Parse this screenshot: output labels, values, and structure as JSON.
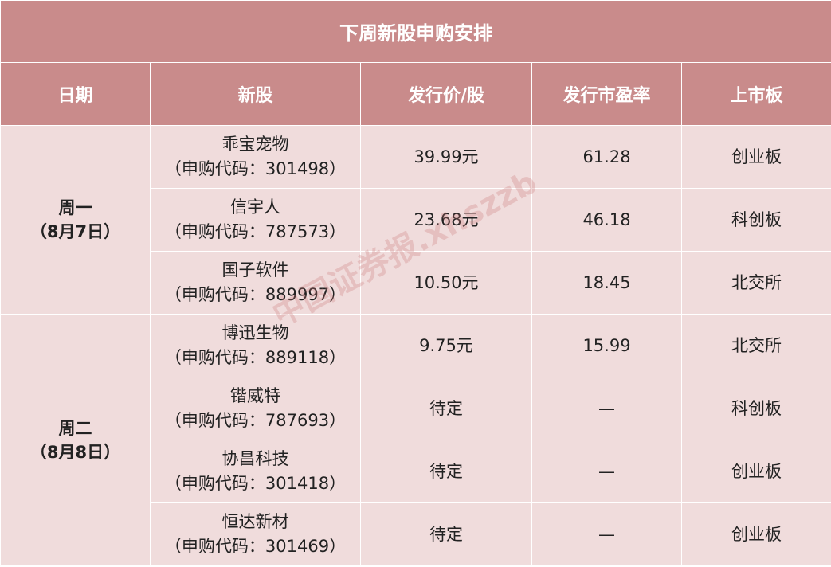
{
  "title": "下周新股申购安排",
  "headers": [
    "日期",
    "新股",
    "发行价/股",
    "发行市盈率",
    "上市板"
  ],
  "groups": [
    {
      "day": "周一",
      "date": "（8月7日）"
    },
    {
      "day": "周二",
      "date": "（8月8日）"
    }
  ],
  "rows": [
    {
      "name": "乖宝宠物",
      "code": "（申购代码：301498）",
      "price": "39.99元",
      "pe": "61.28",
      "board": "创业板"
    },
    {
      "name": "信宇人",
      "code": "（申购代码：787573）",
      "price": "23.68元",
      "pe": "46.18",
      "board": "科创板"
    },
    {
      "name": "国子软件",
      "code": "（申购代码：889997）",
      "price": "10.50元",
      "pe": "18.45",
      "board": "北交所"
    },
    {
      "name": "博迅生物",
      "code": "（申购代码：889118）",
      "price": "9.75元",
      "pe": "15.99",
      "board": "北交所"
    },
    {
      "name": "锴威特",
      "code": "（申购代码：787693）",
      "price": "待定",
      "pe": "—",
      "board": "科创板"
    },
    {
      "name": "协昌科技",
      "code": "（申购代码：301418）",
      "price": "待定",
      "pe": "—",
      "board": "创业板"
    },
    {
      "name": "恒达新材",
      "code": "（申购代码：301469）",
      "price": "待定",
      "pe": "—",
      "board": "创业板"
    }
  ],
  "watermark": "中国证券报.xhszzb",
  "colors": {
    "header_bg": "#c98b8b",
    "body_bg": "#f0dcdc"
  }
}
